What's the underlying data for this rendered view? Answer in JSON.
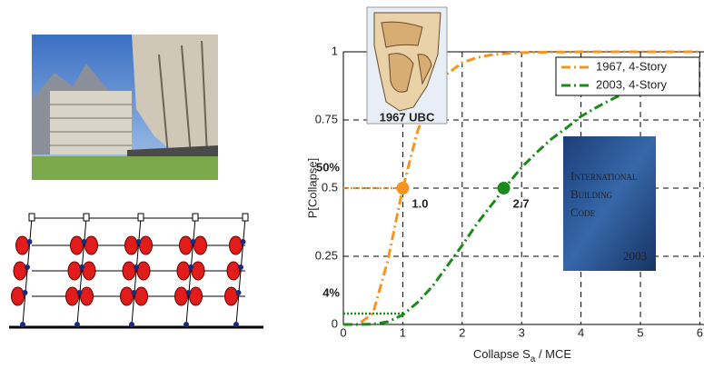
{
  "chart_data": {
    "type": "line",
    "ylabel": "P[Collapse]",
    "xlabel": {
      "main": "Collapse S",
      "sub": "a",
      "rest": " / MCE"
    },
    "x": [
      0,
      0.25,
      0.5,
      0.75,
      1,
      1.25,
      1.5,
      1.75,
      2,
      2.25,
      2.5,
      2.75,
      3,
      3.25,
      3.5,
      3.75,
      4,
      4.25,
      4.5,
      4.75,
      5,
      5.25,
      5.5,
      5.75,
      6
    ],
    "series": [
      {
        "name": "1967, 4-Story",
        "color": "#f7941d",
        "values": [
          0,
          0,
          0.042,
          0.236,
          0.5,
          0.71,
          0.84,
          0.919,
          0.96,
          0.979,
          0.989,
          0.994,
          0.997,
          0.998,
          0.999,
          0.999,
          1,
          1,
          1,
          1,
          1,
          1,
          1,
          1,
          1
        ]
      },
      {
        "name": "2003, 4-Story",
        "color": "#1a8a1a",
        "values": [
          0,
          0,
          0.001,
          0.01,
          0.035,
          0.081,
          0.14,
          0.215,
          0.29,
          0.37,
          0.44,
          0.51,
          0.576,
          0.63,
          0.68,
          0.72,
          0.763,
          0.795,
          0.824,
          0.85,
          0.869,
          0.887,
          0.9,
          0.915,
          0.926
        ]
      }
    ],
    "markers": [
      {
        "x": 1.0,
        "y": 0.5,
        "label": "1.0",
        "level_label": "50%",
        "color": "#f7941d"
      },
      {
        "x": 2.7,
        "y": 0.5,
        "label": "2.7",
        "color": "#1a8a1a"
      },
      {
        "x": 1.0,
        "y": 0.04,
        "level_label": "4%",
        "color": "#1a8a1a"
      }
    ],
    "xlim": [
      0,
      6
    ],
    "ylim": [
      0,
      1
    ],
    "xticks": [
      0,
      1,
      2,
      3,
      4,
      5,
      6
    ],
    "yticks": [
      0,
      0.25,
      0.5,
      0.75,
      1
    ],
    "grid": true,
    "legend": "upper right"
  },
  "images": {
    "map_caption": "1967 UBC",
    "book": {
      "title": [
        "International",
        "Building",
        "Code"
      ],
      "year": "2003"
    }
  }
}
